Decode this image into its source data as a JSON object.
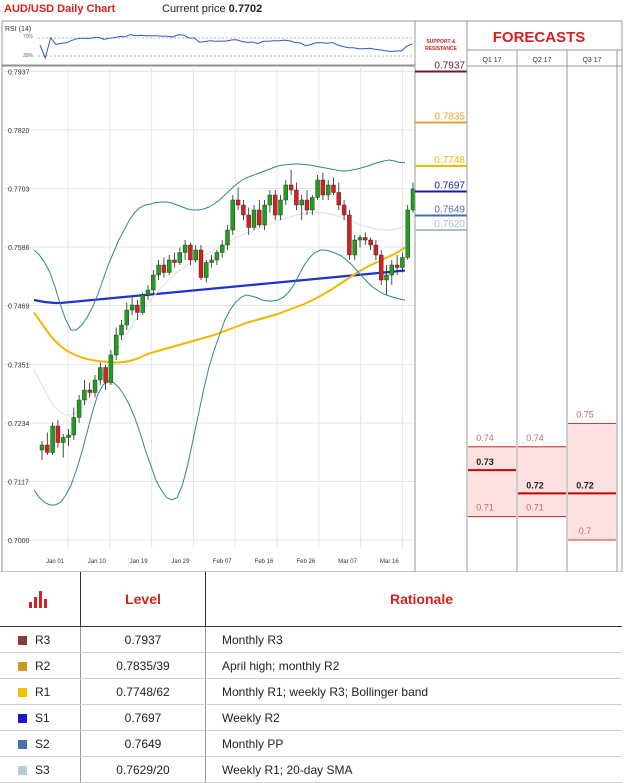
{
  "header": {
    "chart_title": "AUD/USD Daily Chart",
    "price_label": "Current price",
    "price_value": "0.7702"
  },
  "rsi": {
    "label": "RSI (14)",
    "t70": "70%",
    "t30": "30%"
  },
  "support_resistance_label": "SUPPORT & RESISTANCE",
  "forecasts": {
    "title": "FORECASTS",
    "columns": [
      {
        "label": "Q1 17",
        "bars": [
          {
            "value": 0.74,
            "text": "0.74"
          },
          {
            "value": 0.73,
            "text": "0.73"
          },
          {
            "value": 0.71,
            "text": "0.71"
          }
        ]
      },
      {
        "label": "Q2 17",
        "bars": [
          {
            "value": 0.74,
            "text": "0.74"
          },
          {
            "value": 0.72,
            "text": "0.72"
          },
          {
            "value": 0.71,
            "text": "0.71"
          }
        ]
      },
      {
        "label": "Q3 17",
        "bars": [
          {
            "value": 0.75,
            "text": "0.75"
          },
          {
            "value": 0.72,
            "text": "0.72"
          },
          {
            "value": 0.7,
            "text": "0.7"
          }
        ]
      }
    ]
  },
  "colors": {
    "up": "#1ea01e",
    "down": "#d42020",
    "sma200": "#2233cc",
    "sma50": "#f2b800",
    "sma20": "#e2e2e2",
    "bollinger": "#2a8a8a",
    "forecast_fill": "#fde0e0",
    "forecast_line": "#c40000"
  },
  "chart_data": {
    "type": "candlestick",
    "title": "AUD/USD Daily Chart",
    "yticks": [
      "0.7000",
      "0.7117",
      "0.7234",
      "0.7351",
      "0.7469",
      "0.7586",
      "0.7703",
      "0.7820",
      "0.7937"
    ],
    "ylim": [
      0.7,
      0.7937
    ],
    "xticks": [
      "Jan 01",
      "Jan 10",
      "Jan 19",
      "Jan 29",
      "Feb 07",
      "Feb 16",
      "Feb 26",
      "Mar 07",
      "Mar 16"
    ],
    "candles": [
      [
        0.718,
        0.7198,
        0.716,
        0.719
      ],
      [
        0.719,
        0.7215,
        0.717,
        0.7175
      ],
      [
        0.7175,
        0.7235,
        0.717,
        0.7228
      ],
      [
        0.7228,
        0.724,
        0.7185,
        0.7195
      ],
      [
        0.7195,
        0.7212,
        0.7165,
        0.7205
      ],
      [
        0.7205,
        0.7222,
        0.7188,
        0.721
      ],
      [
        0.721,
        0.7265,
        0.72,
        0.7245
      ],
      [
        0.7245,
        0.729,
        0.7235,
        0.728
      ],
      [
        0.728,
        0.732,
        0.727,
        0.73
      ],
      [
        0.73,
        0.7315,
        0.7285,
        0.7295
      ],
      [
        0.7295,
        0.733,
        0.7285,
        0.732
      ],
      [
        0.732,
        0.7355,
        0.731,
        0.7345
      ],
      [
        0.7345,
        0.735,
        0.73,
        0.7315
      ],
      [
        0.7315,
        0.738,
        0.731,
        0.737
      ],
      [
        0.737,
        0.7425,
        0.736,
        0.741
      ],
      [
        0.741,
        0.744,
        0.74,
        0.743
      ],
      [
        0.743,
        0.7475,
        0.742,
        0.746
      ],
      [
        0.746,
        0.7485,
        0.745,
        0.747
      ],
      [
        0.747,
        0.748,
        0.744,
        0.7455
      ],
      [
        0.7455,
        0.7495,
        0.745,
        0.749
      ],
      [
        0.749,
        0.751,
        0.748,
        0.75
      ],
      [
        0.75,
        0.754,
        0.749,
        0.753
      ],
      [
        0.753,
        0.756,
        0.752,
        0.755
      ],
      [
        0.755,
        0.7565,
        0.7525,
        0.7535
      ],
      [
        0.7535,
        0.757,
        0.753,
        0.756
      ],
      [
        0.756,
        0.7575,
        0.7545,
        0.7555
      ],
      [
        0.7555,
        0.7585,
        0.755,
        0.7575
      ],
      [
        0.7575,
        0.76,
        0.756,
        0.759
      ],
      [
        0.759,
        0.7595,
        0.755,
        0.756
      ],
      [
        0.756,
        0.759,
        0.7555,
        0.758
      ],
      [
        0.758,
        0.759,
        0.752,
        0.7525
      ],
      [
        0.7525,
        0.756,
        0.7515,
        0.7555
      ],
      [
        0.7555,
        0.757,
        0.7545,
        0.756
      ],
      [
        0.756,
        0.758,
        0.755,
        0.7575
      ],
      [
        0.7575,
        0.76,
        0.7565,
        0.759
      ],
      [
        0.759,
        0.763,
        0.758,
        0.762
      ],
      [
        0.762,
        0.769,
        0.761,
        0.768
      ],
      [
        0.768,
        0.7705,
        0.766,
        0.767
      ],
      [
        0.767,
        0.768,
        0.764,
        0.765
      ],
      [
        0.765,
        0.7665,
        0.761,
        0.7625
      ],
      [
        0.7625,
        0.767,
        0.762,
        0.766
      ],
      [
        0.766,
        0.768,
        0.7625,
        0.763
      ],
      [
        0.763,
        0.768,
        0.762,
        0.767
      ],
      [
        0.767,
        0.77,
        0.7655,
        0.769
      ],
      [
        0.769,
        0.77,
        0.764,
        0.765
      ],
      [
        0.765,
        0.769,
        0.764,
        0.768
      ],
      [
        0.768,
        0.772,
        0.767,
        0.771
      ],
      [
        0.771,
        0.774,
        0.769,
        0.77
      ],
      [
        0.77,
        0.7715,
        0.766,
        0.767
      ],
      [
        0.767,
        0.769,
        0.764,
        0.768
      ],
      [
        0.768,
        0.77,
        0.765,
        0.766
      ],
      [
        0.766,
        0.769,
        0.765,
        0.7685
      ],
      [
        0.7685,
        0.773,
        0.768,
        0.772
      ],
      [
        0.772,
        0.7735,
        0.768,
        0.769
      ],
      [
        0.769,
        0.772,
        0.768,
        0.771
      ],
      [
        0.771,
        0.7725,
        0.769,
        0.7695
      ],
      [
        0.7695,
        0.7715,
        0.766,
        0.767
      ],
      [
        0.767,
        0.768,
        0.764,
        0.765
      ],
      [
        0.765,
        0.766,
        0.756,
        0.757
      ],
      [
        0.757,
        0.761,
        0.756,
        0.76
      ],
      [
        0.76,
        0.761,
        0.7585,
        0.7605
      ],
      [
        0.7605,
        0.7615,
        0.759,
        0.76
      ],
      [
        0.76,
        0.7605,
        0.758,
        0.759
      ],
      [
        0.759,
        0.76,
        0.756,
        0.757
      ],
      [
        0.757,
        0.758,
        0.751,
        0.752
      ],
      [
        0.752,
        0.755,
        0.749,
        0.753
      ],
      [
        0.753,
        0.756,
        0.751,
        0.755
      ],
      [
        0.755,
        0.757,
        0.753,
        0.7545
      ],
      [
        0.7545,
        0.7575,
        0.7535,
        0.7565
      ],
      [
        0.7565,
        0.767,
        0.756,
        0.766
      ],
      [
        0.766,
        0.7715,
        0.7655,
        0.7702
      ]
    ],
    "series": [
      {
        "name": "sma200",
        "values": [
          0.748,
          0.7478,
          0.7476,
          0.7475,
          0.7474,
          0.7474,
          0.7475,
          0.7476,
          0.7477,
          0.7478,
          0.7479,
          0.748,
          0.7481,
          0.7482,
          0.7483,
          0.7484,
          0.7485,
          0.7486,
          0.7487,
          0.7488,
          0.7489,
          0.749,
          0.7491,
          0.7492,
          0.7493,
          0.7494,
          0.7495,
          0.7496,
          0.7497,
          0.7498,
          0.7499,
          0.75,
          0.7501,
          0.7502,
          0.7503,
          0.7504,
          0.7505,
          0.7506,
          0.7507,
          0.7508,
          0.7509,
          0.751,
          0.7511,
          0.7512,
          0.7513,
          0.7514,
          0.7515,
          0.7516,
          0.7517,
          0.7518,
          0.7519,
          0.752,
          0.7521,
          0.7522,
          0.7523,
          0.7524,
          0.7525,
          0.7526,
          0.7527,
          0.7528,
          0.7529,
          0.753,
          0.7531,
          0.7532,
          0.7533,
          0.7534,
          0.7535,
          0.7536,
          0.7537,
          0.7538,
          0.7539
        ]
      },
      {
        "name": "sma50",
        "values": [
          0.7455,
          0.744,
          0.7425,
          0.741,
          0.7398,
          0.7388,
          0.738,
          0.7374,
          0.7369,
          0.7365,
          0.7362,
          0.736,
          0.7358,
          0.7357,
          0.7356,
          0.7355,
          0.7355,
          0.7356,
          0.7358,
          0.7361,
          0.7365,
          0.737,
          0.7374,
          0.7377,
          0.738,
          0.7383,
          0.7386,
          0.7389,
          0.7392,
          0.7395,
          0.7398,
          0.7401,
          0.7404,
          0.7407,
          0.741,
          0.7414,
          0.7418,
          0.7422,
          0.7426,
          0.743,
          0.7434,
          0.7437,
          0.744,
          0.7443,
          0.7446,
          0.7449,
          0.7452,
          0.7456,
          0.746,
          0.7464,
          0.7468,
          0.7472,
          0.7477,
          0.7482,
          0.7488,
          0.7494,
          0.75,
          0.7507,
          0.7514,
          0.7521,
          0.7528,
          0.7535,
          0.7541,
          0.7547,
          0.7552,
          0.7557,
          0.7562,
          0.7567,
          0.7572,
          0.7578,
          0.7585
        ]
      },
      {
        "name": "bollinger_upper",
        "values": [
          0.758,
          0.757,
          0.7555,
          0.7535,
          0.7505,
          0.747,
          0.744,
          0.742,
          0.742,
          0.743,
          0.7445,
          0.7465,
          0.749,
          0.752,
          0.755,
          0.7575,
          0.76,
          0.762,
          0.764,
          0.7655,
          0.7665,
          0.767,
          0.7672,
          0.7675,
          0.7676,
          0.7676,
          0.7674,
          0.767,
          0.7666,
          0.7662,
          0.766,
          0.766,
          0.7662,
          0.7666,
          0.7672,
          0.768,
          0.769,
          0.77,
          0.771,
          0.7718,
          0.7724,
          0.7728,
          0.7732,
          0.7736,
          0.774,
          0.7744,
          0.7748,
          0.775,
          0.7751,
          0.7752,
          0.7752,
          0.7751,
          0.775,
          0.7748,
          0.7746,
          0.7744,
          0.7742,
          0.774,
          0.7738,
          0.7738,
          0.774,
          0.7742,
          0.7745,
          0.7748,
          0.7752,
          0.7755,
          0.7758,
          0.776,
          0.7758,
          0.7755,
          0.7755
        ]
      },
      {
        "name": "bollinger_lower",
        "values": [
          0.71,
          0.7085,
          0.7075,
          0.707,
          0.707,
          0.7075,
          0.709,
          0.711,
          0.714,
          0.7175,
          0.7215,
          0.7255,
          0.729,
          0.731,
          0.7318,
          0.7315,
          0.7305,
          0.729,
          0.727,
          0.7245,
          0.7215,
          0.718,
          0.715,
          0.712,
          0.71,
          0.7085,
          0.708,
          0.7085,
          0.711,
          0.715,
          0.72,
          0.725,
          0.73,
          0.7345,
          0.738,
          0.741,
          0.744,
          0.746,
          0.7475,
          0.7485,
          0.749,
          0.7488,
          0.7485,
          0.748,
          0.7478,
          0.7478,
          0.748,
          0.7485,
          0.7495,
          0.751,
          0.753,
          0.755,
          0.7565,
          0.7575,
          0.758,
          0.758,
          0.7577,
          0.7573,
          0.7568,
          0.756,
          0.755,
          0.7538,
          0.7526,
          0.7515,
          0.7505,
          0.7498,
          0.7492,
          0.7488,
          0.7485,
          0.7482,
          0.748
        ]
      },
      {
        "name": "sma20",
        "values": [
          0.734,
          0.732,
          0.73,
          0.728,
          0.7265,
          0.7255,
          0.725,
          0.725,
          0.7255,
          0.7265,
          0.728,
          0.7295,
          0.7312,
          0.733,
          0.7348,
          0.7366,
          0.7385,
          0.7403,
          0.742,
          0.7437,
          0.7452,
          0.7466,
          0.748,
          0.7493,
          0.7505,
          0.7516,
          0.7526,
          0.7535,
          0.7543,
          0.755,
          0.7556,
          0.7562,
          0.7568,
          0.7574,
          0.758,
          0.7586,
          0.7592,
          0.7598,
          0.7604,
          0.7609,
          0.7614,
          0.7618,
          0.7622,
          0.7626,
          0.763,
          0.7634,
          0.7638,
          0.7642,
          0.7645,
          0.7648,
          0.7651,
          0.7653,
          0.7654,
          0.7655,
          0.7655,
          0.7654,
          0.7652,
          0.7649,
          0.7645,
          0.7641,
          0.7637,
          0.7633,
          0.7629,
          0.7626,
          0.7623,
          0.7621,
          0.762,
          0.762,
          0.7621,
          0.7624,
          0.7629
        ]
      }
    ],
    "levels": [
      {
        "value": 0.7937,
        "text": "0.7937",
        "color": "#6b1a2a"
      },
      {
        "value": 0.7835,
        "text": "0.7835",
        "color": "#e8a030"
      },
      {
        "value": 0.7748,
        "text": "0.7748",
        "color": "#f2b800"
      },
      {
        "value": 0.7697,
        "text": "0.7697",
        "color": "#1a1aa0"
      },
      {
        "value": 0.7649,
        "text": "0.7649",
        "color": "#4a6fa5"
      },
      {
        "value": 0.762,
        "text": "0.7620",
        "color": "#a8c0d0"
      }
    ]
  },
  "levels_table": {
    "headers": [
      "Level",
      "Rationale"
    ],
    "rows": [
      {
        "swatch": "#8b3a3a",
        "name": "R3",
        "level": "0.7937",
        "rationale": "Monthly R3"
      },
      {
        "swatch": "#c89a20",
        "name": "R2",
        "level": "0.7835/39",
        "rationale": "April high; monthly R2"
      },
      {
        "swatch": "#f2c200",
        "name": "R1",
        "level": "0.7748/62",
        "rationale": "Monthly R1; weekly R3; Bollinger band"
      },
      {
        "swatch": "#1a1acc",
        "name": "S1",
        "level": "0.7697",
        "rationale": "Weekly R2"
      },
      {
        "swatch": "#4a72b0",
        "name": "S2",
        "level": "0.7649",
        "rationale": "Monthly PP"
      },
      {
        "swatch": "#b8ccdc",
        "name": "S3",
        "level": "0.7629/20",
        "rationale": "Weekly R1; 20-day SMA"
      }
    ]
  }
}
